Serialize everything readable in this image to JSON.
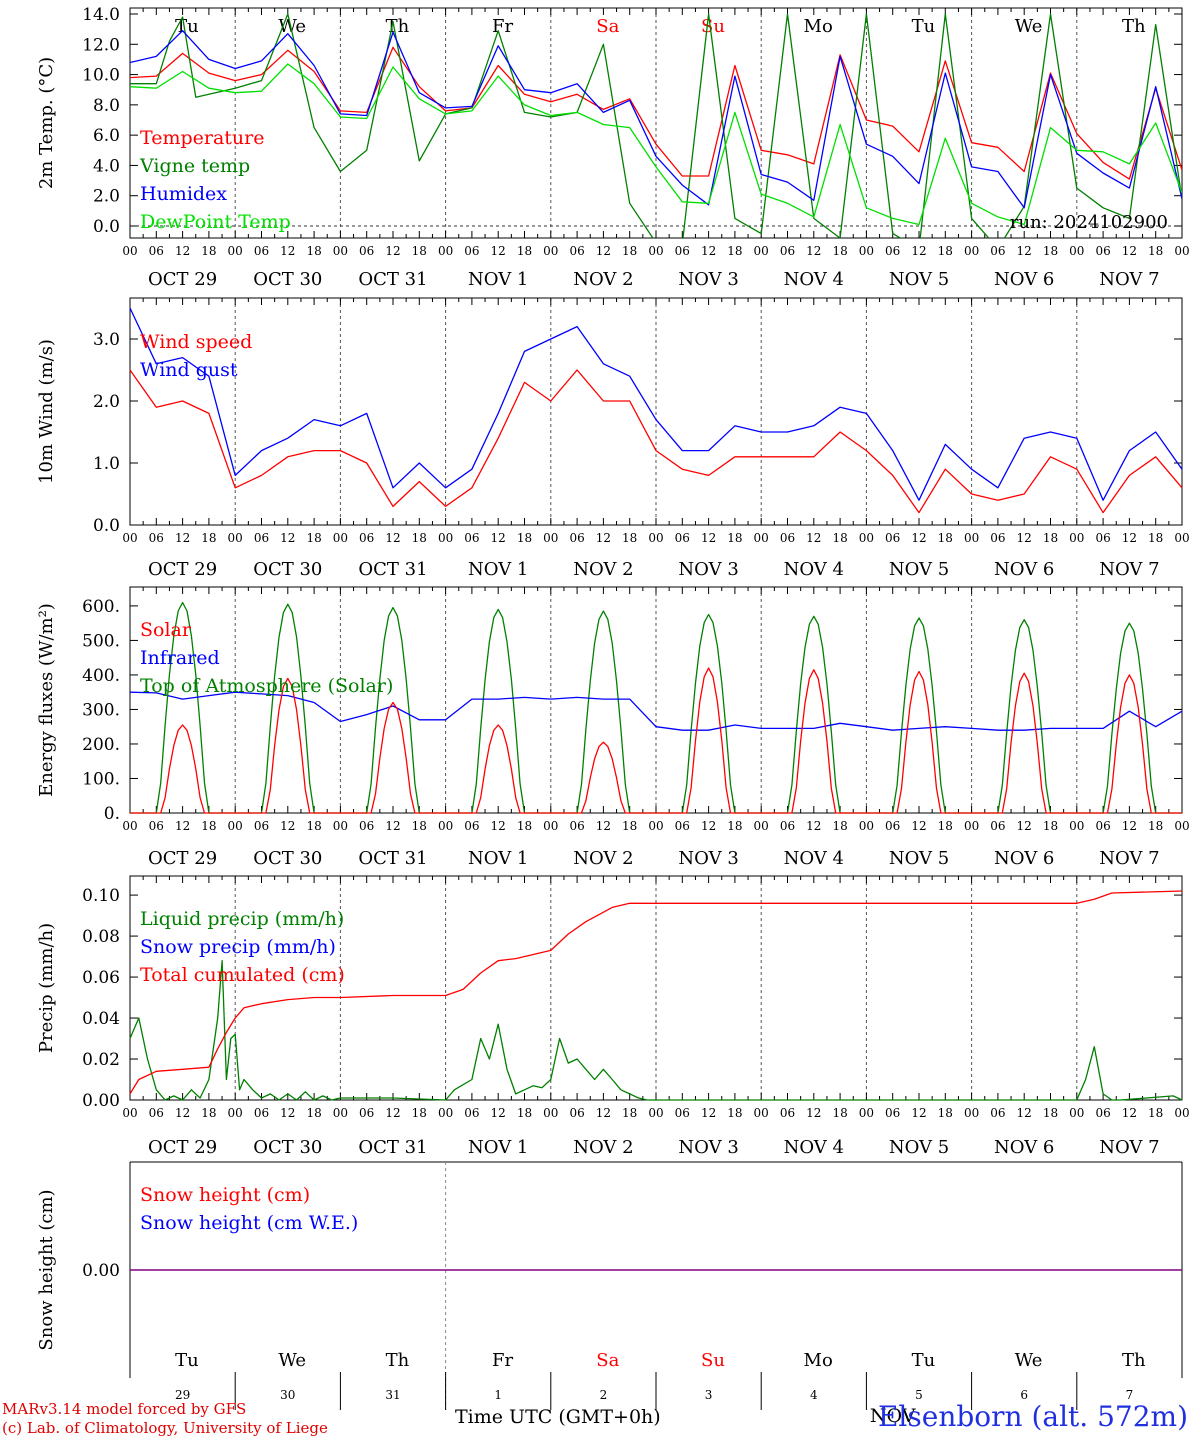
{
  "colors": {
    "red": "#ff0000",
    "green": "#008000",
    "lightgreen": "#00e000",
    "blue": "#0000ff",
    "snow_line": "#800080",
    "weekend_red": "#ff0000"
  },
  "days": {
    "weekday_labels": [
      "Tu",
      "We",
      "Th",
      "Fr",
      "Sa",
      "Su",
      "Mo",
      "Tu",
      "We",
      "Th"
    ],
    "weekend_flags": [
      false,
      false,
      false,
      false,
      true,
      true,
      false,
      false,
      false,
      false
    ],
    "date_labels": [
      "OCT 29",
      "OCT 30",
      "OCT 31",
      "NOV  1",
      "NOV  2",
      "NOV  3",
      "NOV  4",
      "NOV  5",
      "NOV  6",
      "NOV  7"
    ],
    "day_numbers": [
      "29",
      "30",
      "31",
      "1",
      "2",
      "3",
      "4",
      "5",
      "6",
      "7"
    ],
    "hour_labels": [
      "00",
      "06",
      "12",
      "18"
    ],
    "final_hour_label": "00",
    "month_label_nov": "NOV"
  },
  "footer": {
    "model_line1": "MARv3.14 model forced by GFS",
    "model_line2": "(c) Lab. of Climatology, University of Liege",
    "time_axis_label": "Time UTC (GMT+0h)",
    "station": "Elsenborn (alt. 572m)"
  },
  "chart_data": [
    {
      "type": "line",
      "ylabel": "2m Temp. (°C)",
      "ylim": [
        -1,
        14
      ],
      "yticks": [
        "0.0",
        "2.0",
        "4.0",
        "6.0",
        "8.0",
        "10.0",
        "12.0",
        "14.0"
      ],
      "yticks_values": [
        0,
        2,
        4,
        6,
        8,
        10,
        12,
        14
      ],
      "zero_line": true,
      "annotation": "run: 2024102900",
      "x_unit": "hours since 2024-10-29 00 UTC",
      "series": [
        {
          "name": "Temperature",
          "color_key": "red",
          "x": [
            0,
            6,
            12,
            18,
            24,
            30,
            36,
            42,
            48,
            54,
            60,
            66,
            72,
            78,
            84,
            90,
            96,
            102,
            108,
            114,
            120,
            126,
            132,
            138,
            144,
            150,
            156,
            162,
            168,
            174,
            180,
            186,
            192,
            198,
            204,
            210,
            216,
            222,
            228,
            234,
            240
          ],
          "y": [
            9.8,
            9.9,
            11.4,
            10.1,
            9.6,
            10,
            11.6,
            10.2,
            7.6,
            7.5,
            11.8,
            9.2,
            7.6,
            7.8,
            10.6,
            8.7,
            8.2,
            8.7,
            7.7,
            8.4,
            5.4,
            3.3,
            3.3,
            10.6,
            5,
            4.7,
            4.1,
            11.3,
            7,
            6.6,
            4.9,
            10.9,
            5.5,
            5.2,
            3.6,
            10.1,
            6.1,
            4.2,
            3.1,
            9.1,
            3.7
          ]
        },
        {
          "name": "Vigne temp",
          "color_key": "green",
          "x": [
            0,
            6,
            9,
            12,
            15,
            18,
            24,
            30,
            36,
            42,
            48,
            54,
            60,
            66,
            72,
            78,
            84,
            90,
            96,
            102,
            108,
            114,
            120,
            126,
            132,
            138,
            144,
            150,
            156,
            162,
            168,
            174,
            180,
            186,
            192,
            198,
            204,
            210,
            216,
            222,
            228,
            234,
            240
          ],
          "y": [
            9.4,
            9.4,
            12.2,
            13.8,
            8.5,
            8.7,
            9.1,
            9.6,
            14.0,
            6.5,
            3.6,
            5,
            13.5,
            4.3,
            7.4,
            7.8,
            12.9,
            7.5,
            7.2,
            7.5,
            12,
            1.5,
            -1.1,
            -1.2,
            14,
            0.5,
            -0.5,
            14,
            0.5,
            -0.8,
            14,
            -0.5,
            -1.5,
            14,
            0.5,
            -1.5,
            1.3,
            14,
            2.5,
            1.2,
            0.5,
            13.3,
            1.8
          ]
        },
        {
          "name": "Humidex",
          "color_key": "blue",
          "x": [
            0,
            6,
            12,
            18,
            24,
            30,
            36,
            42,
            48,
            54,
            60,
            66,
            72,
            78,
            84,
            90,
            96,
            102,
            108,
            114,
            120,
            126,
            132,
            138,
            144,
            150,
            156,
            162,
            168,
            174,
            180,
            186,
            192,
            198,
            204,
            210,
            216,
            222,
            228,
            234,
            240
          ],
          "y": [
            10.8,
            11.2,
            12.9,
            11.0,
            10.4,
            10.9,
            12.7,
            10.6,
            7.4,
            7.3,
            12.8,
            8.8,
            7.8,
            7.9,
            11.9,
            9,
            8.8,
            9.4,
            7.5,
            8.3,
            4.6,
            2.7,
            1.4,
            9.9,
            3.4,
            2.9,
            1.7,
            11.2,
            5.4,
            4.6,
            2.8,
            10.1,
            3.9,
            3.6,
            1.2,
            10,
            4.8,
            3.5,
            2.5,
            9.2,
            1.8
          ]
        },
        {
          "name": "DewPoint Temp",
          "color_key": "lightgreen",
          "x": [
            0,
            6,
            12,
            18,
            24,
            30,
            36,
            42,
            48,
            54,
            60,
            66,
            72,
            78,
            84,
            90,
            96,
            102,
            108,
            114,
            120,
            126,
            132,
            138,
            144,
            150,
            156,
            162,
            168,
            174,
            180,
            186,
            192,
            198,
            204,
            210,
            216,
            222,
            228,
            234,
            240
          ],
          "y": [
            9.2,
            9.1,
            10.2,
            9.1,
            8.8,
            8.9,
            10.7,
            9.4,
            7.2,
            7.1,
            10.5,
            8.4,
            7.4,
            7.6,
            9.9,
            8,
            7.3,
            7.5,
            6.7,
            6.5,
            3.9,
            1.6,
            1.5,
            7.5,
            2.1,
            1.5,
            0.6,
            6.7,
            1.2,
            0.5,
            0.1,
            5.8,
            1.5,
            0.6,
            0.1,
            6.5,
            5,
            4.9,
            4.1,
            6.8,
            2.2
          ]
        }
      ]
    },
    {
      "type": "line",
      "ylabel": "10m Wind (m/s)",
      "ylim": [
        0,
        3.5
      ],
      "yticks": [
        "0.0",
        "1.0",
        "2.0",
        "3.0"
      ],
      "yticks_values": [
        0,
        1,
        2,
        3
      ],
      "x_unit": "hours since 2024-10-29 00 UTC",
      "series": [
        {
          "name": "Wind speed",
          "color_key": "red",
          "x": [
            0,
            6,
            12,
            18,
            24,
            30,
            36,
            42,
            48,
            54,
            60,
            66,
            72,
            78,
            84,
            90,
            96,
            102,
            108,
            114,
            120,
            126,
            132,
            138,
            144,
            150,
            156,
            162,
            168,
            174,
            180,
            186,
            192,
            198,
            204,
            210,
            216,
            222,
            228,
            234,
            240
          ],
          "y": [
            2.5,
            1.9,
            2.0,
            1.8,
            0.6,
            0.8,
            1.1,
            1.2,
            1.2,
            1.0,
            0.3,
            0.7,
            0.3,
            0.6,
            1.4,
            2.3,
            2.0,
            2.5,
            2.0,
            2.0,
            1.2,
            0.9,
            0.8,
            1.1,
            1.1,
            1.1,
            1.1,
            1.5,
            1.2,
            0.8,
            0.2,
            0.9,
            0.5,
            0.4,
            0.5,
            1.1,
            0.9,
            0.2,
            0.8,
            1.1,
            0.6
          ]
        },
        {
          "name": "Wind gust",
          "color_key": "blue",
          "x": [
            0,
            6,
            12,
            18,
            24,
            30,
            36,
            42,
            48,
            54,
            60,
            66,
            72,
            78,
            84,
            90,
            96,
            102,
            108,
            114,
            120,
            126,
            132,
            138,
            144,
            150,
            156,
            162,
            168,
            174,
            180,
            186,
            192,
            198,
            204,
            210,
            216,
            222,
            228,
            234,
            240
          ],
          "y": [
            3.5,
            2.6,
            2.7,
            2.4,
            0.8,
            1.2,
            1.4,
            1.7,
            1.6,
            1.8,
            0.6,
            1.0,
            0.6,
            0.9,
            1.8,
            2.8,
            3.0,
            3.2,
            2.6,
            2.4,
            1.7,
            1.2,
            1.2,
            1.6,
            1.5,
            1.5,
            1.6,
            1.9,
            1.8,
            1.2,
            0.4,
            1.3,
            0.9,
            0.6,
            1.4,
            1.5,
            1.4,
            0.4,
            1.2,
            1.5,
            0.9
          ]
        }
      ]
    },
    {
      "type": "line",
      "ylabel": "Energy fluxes (W/m²)",
      "ylim": [
        0,
        650
      ],
      "yticks": [
        "0.",
        "100.",
        "200.",
        "300.",
        "400.",
        "500.",
        "600."
      ],
      "yticks_values": [
        0,
        100,
        200,
        300,
        400,
        500,
        600
      ],
      "x_unit": "hours since 2024-10-29 00 UTC",
      "day_peaks": {
        "solar": [
          255,
          390,
          320,
          255,
          205,
          420,
          415,
          410,
          405,
          400
        ],
        "toa": [
          610,
          605,
          595,
          590,
          585,
          575,
          570,
          565,
          560,
          550
        ]
      },
      "series": [
        {
          "name": "Solar",
          "color_key": "red"
        },
        {
          "name": "Infrared",
          "color_key": "blue",
          "x": [
            0,
            6,
            12,
            18,
            24,
            30,
            36,
            42,
            48,
            54,
            60,
            66,
            72,
            78,
            84,
            90,
            96,
            102,
            108,
            114,
            120,
            126,
            132,
            138,
            144,
            150,
            156,
            162,
            168,
            174,
            180,
            186,
            192,
            198,
            204,
            210,
            216,
            222,
            228,
            234,
            240
          ],
          "y": [
            350,
            348,
            330,
            340,
            350,
            345,
            340,
            320,
            265,
            285,
            310,
            270,
            270,
            330,
            330,
            335,
            330,
            335,
            330,
            330,
            250,
            240,
            240,
            255,
            245,
            245,
            245,
            260,
            250,
            240,
            245,
            250,
            245,
            240,
            240,
            245,
            245,
            245,
            295,
            250,
            295
          ]
        },
        {
          "name": "Top of Atmosphere (Solar)",
          "color_key": "green"
        }
      ]
    },
    {
      "type": "line",
      "ylabel": "Precip (mm/h)",
      "ylim": [
        0,
        0.11
      ],
      "yticks": [
        "0.00",
        "0.02",
        "0.04",
        "0.06",
        "0.08",
        "0.10"
      ],
      "yticks_values": [
        0,
        0.02,
        0.04,
        0.06,
        0.08,
        0.1
      ],
      "x_unit": "hours since 2024-10-29 00 UTC",
      "series": [
        {
          "name": "Liquid precip (mm/h)",
          "color_key": "green",
          "x": [
            0,
            2,
            4,
            6,
            8,
            10,
            12,
            14,
            16,
            18,
            20,
            21,
            22,
            23,
            24,
            25,
            26,
            28,
            30,
            32,
            34,
            36,
            38,
            40,
            42,
            44,
            46,
            48,
            60,
            72,
            74,
            78,
            80,
            82,
            84,
            86,
            88,
            90,
            92,
            94,
            96,
            98,
            100,
            102,
            104,
            106,
            108,
            110,
            112,
            114,
            116,
            118,
            120,
            168,
            204,
            216,
            218,
            220,
            222,
            224,
            226,
            238,
            240
          ],
          "y": [
            0.03,
            0.04,
            0.02,
            0.005,
            0.0,
            0.002,
            0.0,
            0.005,
            0.001,
            0.01,
            0.04,
            0.068,
            0.01,
            0.03,
            0.032,
            0.005,
            0.01,
            0.005,
            0.001,
            0.003,
            0.0,
            0.003,
            0.0,
            0.004,
            0.0,
            0.002,
            0.0,
            0.001,
            0.001,
            0.0,
            0.005,
            0.01,
            0.03,
            0.02,
            0.037,
            0.015,
            0.003,
            0.005,
            0.007,
            0.006,
            0.01,
            0.03,
            0.018,
            0.02,
            0.015,
            0.01,
            0.015,
            0.01,
            0.005,
            0.003,
            0.001,
            0.0,
            0.0,
            0.0,
            0.0,
            0.0,
            0.01,
            0.026,
            0.003,
            0.0,
            0.0,
            0.002,
            0.0
          ]
        },
        {
          "name": "Snow precip (mm/h)",
          "color_key": "blue",
          "x": [],
          "y": []
        },
        {
          "name": "Total cumulated (cm)",
          "color_key": "red",
          "x": [
            0,
            2,
            6,
            12,
            18,
            20,
            22,
            24,
            26,
            30,
            36,
            42,
            48,
            60,
            72,
            76,
            80,
            84,
            88,
            96,
            100,
            104,
            110,
            114,
            118,
            120,
            168,
            216,
            220,
            224,
            240
          ],
          "y": [
            0.003,
            0.01,
            0.014,
            0.015,
            0.016,
            0.025,
            0.033,
            0.04,
            0.045,
            0.047,
            0.049,
            0.05,
            0.05,
            0.051,
            0.051,
            0.054,
            0.062,
            0.068,
            0.069,
            0.073,
            0.081,
            0.087,
            0.094,
            0.096,
            0.096,
            0.096,
            0.096,
            0.096,
            0.098,
            0.101,
            0.102
          ]
        }
      ]
    },
    {
      "type": "line",
      "ylabel": "Snow height (cm)",
      "ytick": "0.00",
      "series": [
        {
          "name": "Snow height (cm)",
          "color_key": "red",
          "x": [
            0,
            240
          ],
          "y": [
            0,
            0
          ]
        },
        {
          "name": "Snow height (cm W.E.)",
          "color_key": "blue",
          "x": [
            0,
            240
          ],
          "y": [
            0,
            0
          ]
        }
      ]
    }
  ]
}
